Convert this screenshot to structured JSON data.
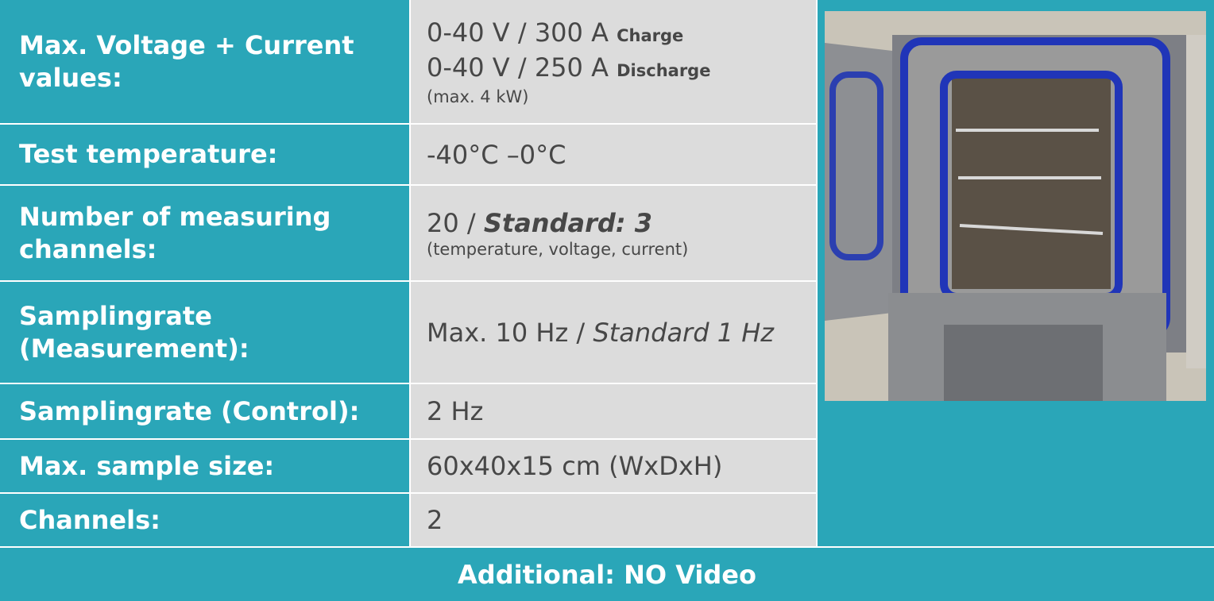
{
  "table": {
    "rows": [
      {
        "label": "Max. Voltage + Current values:",
        "value": [
          "0-40 V / 300 A",
          "Charge",
          "0-40 V / 250 A",
          "Discharge",
          "(max. 4 kW)"
        ]
      },
      {
        "label": "Test temperature:",
        "value": [
          "-40°C –0°C"
        ]
      },
      {
        "label": "Number of measuring channels:",
        "value": [
          "20 / ",
          "Standard: 3",
          "(temperature, voltage, current)"
        ]
      },
      {
        "label": "Samplingrate (Measurement):",
        "value": [
          "Max. 10 Hz / ",
          "Standard 1 Hz"
        ]
      },
      {
        "label": "Samplingrate (Control):",
        "value": [
          "2 Hz"
        ]
      },
      {
        "label": "Max. sample size:",
        "value": [
          "60x40x15 cm (WxDxH)"
        ]
      },
      {
        "label": "Channels:",
        "value": [
          "2"
        ]
      }
    ],
    "footer": "Additional: NO Video"
  }
}
